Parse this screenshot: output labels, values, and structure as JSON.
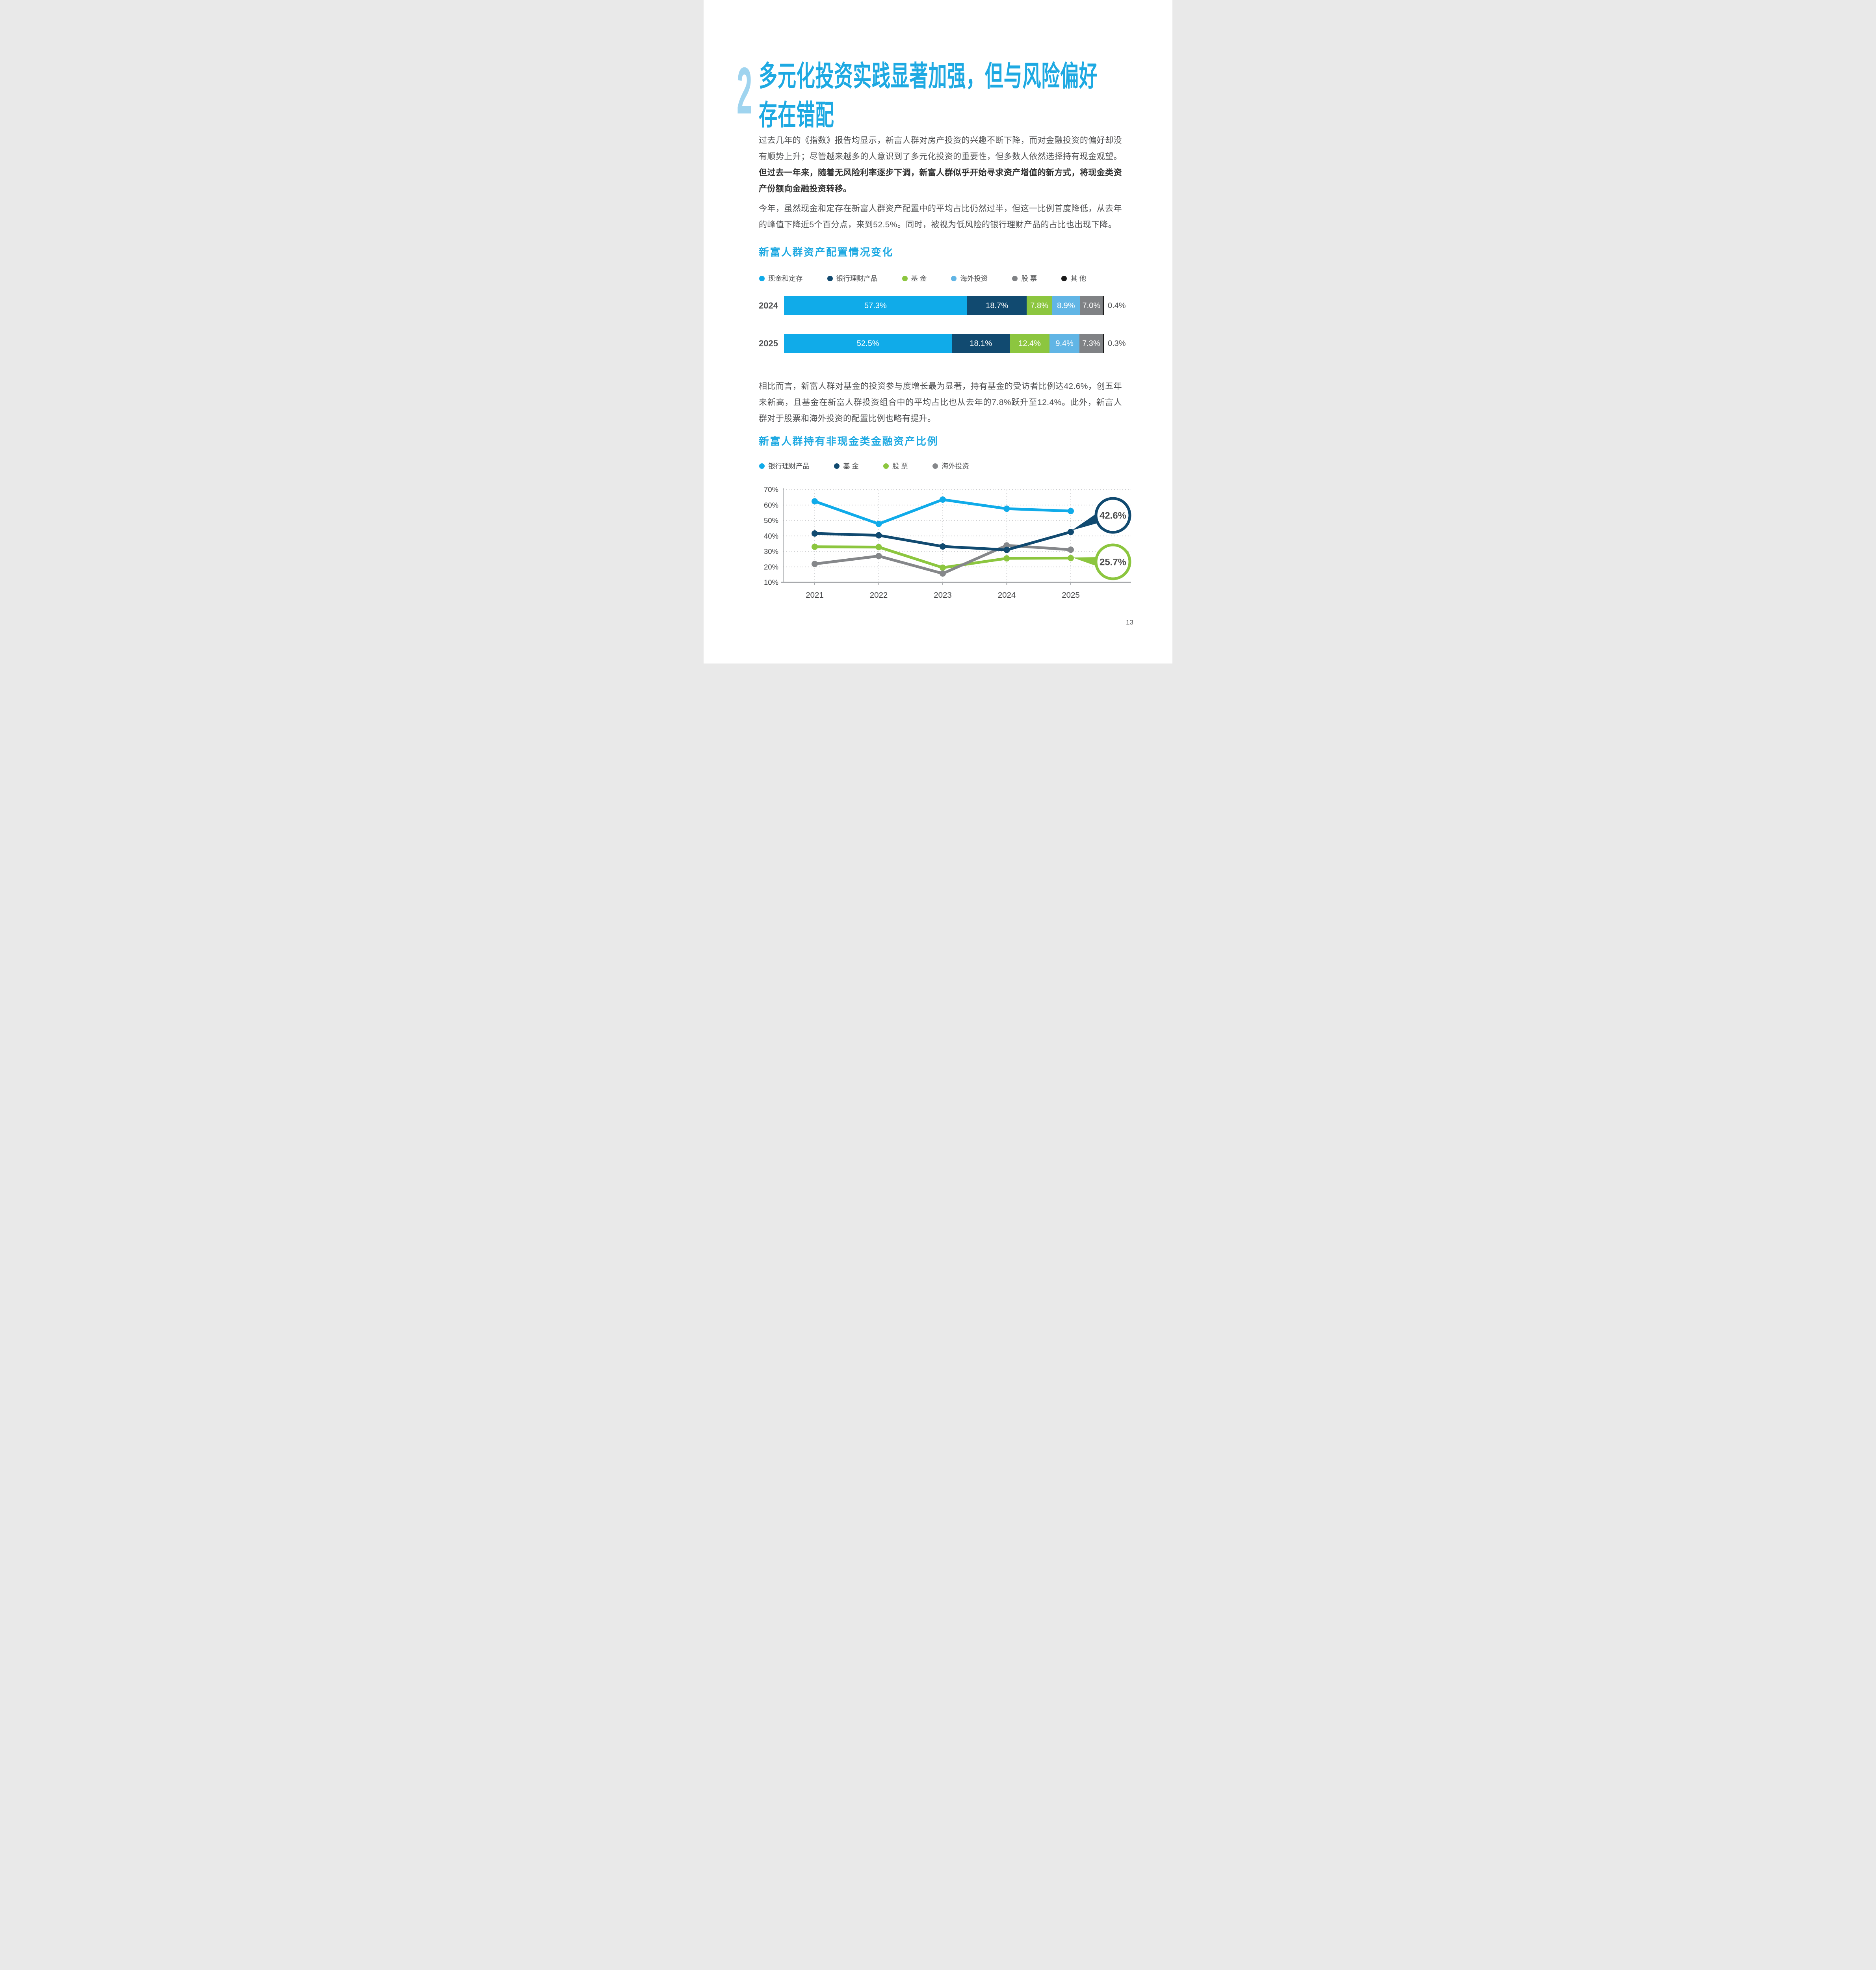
{
  "page": {
    "number": "13"
  },
  "header": {
    "section_number": "2",
    "title_line1": "多元化投资实践显著加强，但与风险偏好",
    "title_line2": "存在错配"
  },
  "paragraphs": {
    "p1_regular": "过去几年的《指数》报告均显示，新富人群对房产投资的兴趣不断下降，而对金融投资的偏好却没有顺势上升；尽管越来越多的人意识到了多元化投资的重要性，但多数人依然选择持有现金观望。",
    "p1_bold": "但过去一年来，随着无风险利率逐步下调，新富人群似乎开始寻求资产增值的新方式，将现金类资产份额向金融投资转移。",
    "p2": "今年，虽然现金和定存在新富人群资产配置中的平均占比仍然过半，但这一比例首度降低，从去年的峰值下降近5个百分点，来到52.5%。同时，被视为低风险的银行理财产品的占比也出现下降。",
    "p3": "相比而言，新富人群对基金的投资参与度增长最为显著，持有基金的受访者比例达42.6%，创五年来新高，且基金在新富人群投资组合中的平均占比也从去年的7.8%跃升至12.4%。此外，新富人群对于股票和海外投资的配置比例也略有提升。"
  },
  "colors": {
    "accent_blue": "#1ea9e2",
    "light_numeral_blue": "#9fd4ef",
    "bright_blue": "#10abe9",
    "navy": "#114a70",
    "green": "#8cc63f",
    "sky_blue": "#61b5e5",
    "gray": "#808285",
    "line_gray": "#85878a",
    "black": "#1a1a1a",
    "body_text": "#4e4f51"
  },
  "chart_data": [
    {
      "type": "bar",
      "orientation": "horizontal-stacked",
      "title": "新富人群资产配置情况变化",
      "legend": [
        {
          "label": "现金和定存",
          "color": "#10abe9"
        },
        {
          "label": "银行理财产品",
          "color": "#114a70"
        },
        {
          "label": "基 金",
          "color": "#8cc63f"
        },
        {
          "label": "海外投资",
          "color": "#61b5e5"
        },
        {
          "label": "股 票",
          "color": "#808285"
        },
        {
          "label": "其 他",
          "color": "#1a1a1a"
        }
      ],
      "categories": [
        "2024",
        "2025"
      ],
      "rows": [
        {
          "year": "2024",
          "values": [
            57.3,
            18.7,
            7.8,
            8.9,
            7.0,
            0.4
          ],
          "labels": [
            "57.3%",
            "18.7%",
            "7.8%",
            "8.9%",
            "7.0%",
            ""
          ],
          "outside_label": "0.4%"
        },
        {
          "year": "2025",
          "values": [
            52.5,
            18.1,
            12.4,
            9.4,
            7.3,
            0.3
          ],
          "labels": [
            "52.5%",
            "18.1%",
            "12.4%",
            "9.4%",
            "7.3%",
            ""
          ],
          "outside_label": "0.3%"
        }
      ]
    },
    {
      "type": "line",
      "title": "新富人群持有非现金类金融资产比例",
      "x": [
        "2021",
        "2022",
        "2023",
        "2024",
        "2025"
      ],
      "ylim": [
        10,
        70
      ],
      "yticks": [
        "70%",
        "60%",
        "50%",
        "40%",
        "30%",
        "20%",
        "10%"
      ],
      "grid": "dotted",
      "legend": [
        {
          "label": "银行理财产品",
          "color": "#10abe9"
        },
        {
          "label": "基 金",
          "color": "#114a70"
        },
        {
          "label": "股 票",
          "color": "#8cc63f"
        },
        {
          "label": "海外投资",
          "color": "#85878a"
        }
      ],
      "series": [
        {
          "name": "银行理财产品",
          "color": "#10abe9",
          "values": [
            62.4,
            47.8,
            63.5,
            57.6,
            56.1
          ]
        },
        {
          "name": "基金",
          "color": "#114a70",
          "values": [
            41.6,
            40.4,
            33.2,
            31.0,
            42.6
          ]
        },
        {
          "name": "股票",
          "color": "#8cc63f",
          "values": [
            33.0,
            32.8,
            19.5,
            25.5,
            25.7
          ]
        },
        {
          "name": "海外投资",
          "color": "#85878a",
          "values": [
            21.9,
            27.0,
            15.7,
            33.9,
            31.1
          ]
        }
      ],
      "annotations": [
        {
          "text": "42.6%",
          "series": "基金"
        },
        {
          "text": "25.7%",
          "series": "股票"
        }
      ]
    }
  ]
}
